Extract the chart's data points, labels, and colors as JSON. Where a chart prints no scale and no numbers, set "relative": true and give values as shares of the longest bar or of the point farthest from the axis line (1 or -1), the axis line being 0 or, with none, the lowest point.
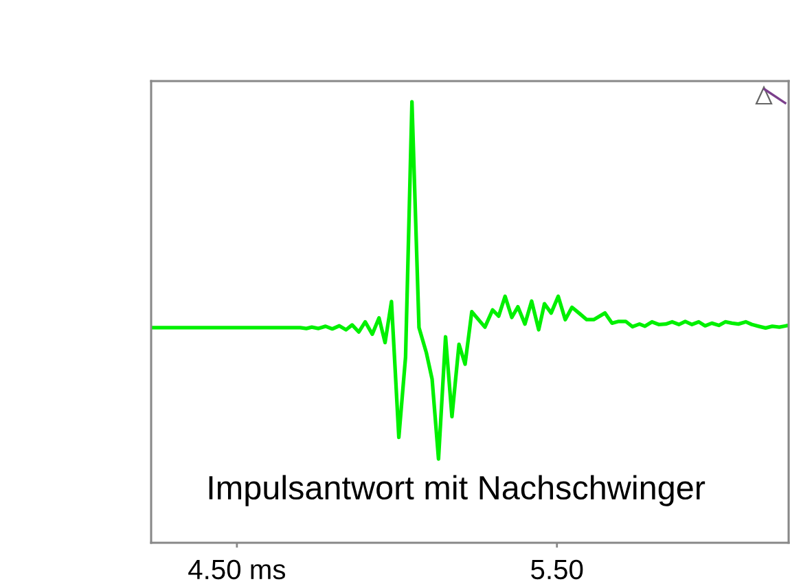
{
  "chart_data": {
    "type": "line",
    "title": "Impulsantwort mit Nachschwinger",
    "relative": true,
    "xlim": [
      4.232,
      6.224
    ],
    "xticks": [
      {
        "value": 4.5,
        "label": "4.50 ms"
      },
      {
        "value": 5.5,
        "label": "5.50"
      }
    ],
    "tick_labels": "x",
    "grid": false,
    "marker": "none",
    "line_style": "solid",
    "color": "#00f000",
    "x": [
      4.232,
      4.698,
      4.717,
      4.734,
      4.755,
      4.777,
      4.798,
      4.82,
      4.841,
      4.86,
      4.881,
      4.901,
      4.923,
      4.944,
      4.963,
      4.983,
      5.006,
      5.027,
      5.047,
      5.069,
      5.092,
      5.11,
      5.13,
      5.152,
      5.172,
      5.194,
      5.213,
      5.234,
      5.275,
      5.299,
      5.318,
      5.338,
      5.359,
      5.378,
      5.4,
      5.421,
      5.443,
      5.461,
      5.482,
      5.504,
      5.526,
      5.547,
      5.572,
      5.593,
      5.615,
      5.65,
      5.672,
      5.693,
      5.715,
      5.736,
      5.758,
      5.775,
      5.797,
      5.818,
      5.84,
      5.86,
      5.881,
      5.901,
      5.922,
      5.943,
      5.963,
      5.984,
      6.006,
      6.026,
      6.047,
      6.067,
      6.09,
      6.109,
      6.13,
      6.152,
      6.173,
      6.195,
      6.216,
      6.224
    ],
    "values": [
      0.488,
      0.488,
      0.486,
      0.489,
      0.486,
      0.491,
      0.485,
      0.492,
      0.483,
      0.494,
      0.478,
      0.501,
      0.473,
      0.51,
      0.454,
      0.547,
      0.239,
      0.421,
      1.0,
      0.488,
      0.431,
      0.371,
      0.19,
      0.467,
      0.286,
      0.45,
      0.405,
      0.524,
      0.489,
      0.528,
      0.514,
      0.559,
      0.511,
      0.535,
      0.496,
      0.548,
      0.483,
      0.542,
      0.521,
      0.559,
      0.506,
      0.534,
      0.519,
      0.506,
      0.506,
      0.521,
      0.498,
      0.502,
      0.502,
      0.49,
      0.496,
      0.491,
      0.501,
      0.495,
      0.496,
      0.501,
      0.495,
      0.502,
      0.495,
      0.501,
      0.492,
      0.498,
      0.493,
      0.501,
      0.498,
      0.496,
      0.501,
      0.495,
      0.491,
      0.487,
      0.491,
      0.489,
      0.492,
      0.493
    ]
  }
}
